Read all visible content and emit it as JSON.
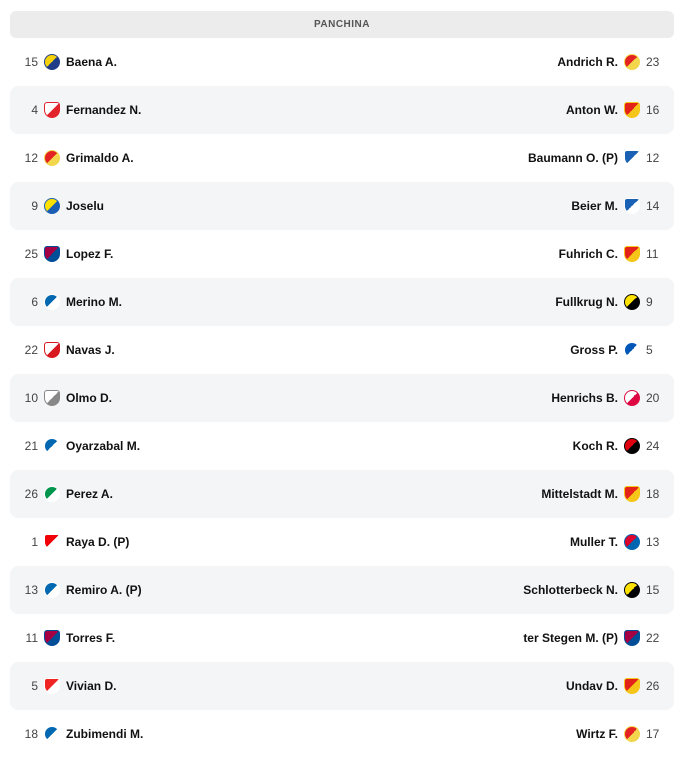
{
  "header": {
    "title": "PANCHINA"
  },
  "rows": [
    {
      "home": {
        "num": "15",
        "name": "Baena A.",
        "crest": "villarreal-crest",
        "c1": "#f5d20c",
        "c2": "#1f3c88"
      },
      "away": {
        "num": "23",
        "name": "Andrich R.",
        "crest": "leverkusen-crest",
        "c1": "#e32221",
        "c2": "#f2d64b"
      }
    },
    {
      "home": {
        "num": "4",
        "name": "Fernandez N.",
        "crest": "girona-crest",
        "c1": "#ffffff",
        "c2": "#e3232c"
      },
      "away": {
        "num": "16",
        "name": "Anton W.",
        "crest": "stuttgart-crest",
        "c1": "#e32219",
        "c2": "#f5c518"
      }
    },
    {
      "home": {
        "num": "12",
        "name": "Grimaldo A.",
        "crest": "leverkusen-crest",
        "c1": "#e32221",
        "c2": "#f2d64b"
      },
      "away": {
        "num": "12",
        "name": "Baumann O. (P)",
        "crest": "hoffenheim-crest",
        "c1": "#1961b5",
        "c2": "#ffffff"
      }
    },
    {
      "home": {
        "num": "9",
        "name": "Joselu",
        "crest": "las-palmas-crest",
        "c1": "#ffe100",
        "c2": "#1a5fb4"
      },
      "away": {
        "num": "14",
        "name": "Beier M.",
        "crest": "hoffenheim-crest",
        "c1": "#1961b5",
        "c2": "#ffffff"
      }
    },
    {
      "home": {
        "num": "25",
        "name": "Lopez F.",
        "crest": "barcelona-crest",
        "c1": "#a50044",
        "c2": "#004d98"
      },
      "away": {
        "num": "11",
        "name": "Fuhrich C.",
        "crest": "stuttgart-crest",
        "c1": "#e32219",
        "c2": "#f5c518"
      }
    },
    {
      "home": {
        "num": "6",
        "name": "Merino M.",
        "crest": "real-sociedad-crest",
        "c1": "#0067b1",
        "c2": "#ffffff"
      },
      "away": {
        "num": "9",
        "name": "Fullkrug N.",
        "crest": "dortmund-crest",
        "c1": "#fde100",
        "c2": "#000000"
      }
    },
    {
      "home": {
        "num": "22",
        "name": "Navas J.",
        "crest": "sevilla-crest",
        "c1": "#ffffff",
        "c2": "#d81920"
      },
      "away": {
        "num": "5",
        "name": "Gross P.",
        "crest": "brighton-crest",
        "c1": "#0057b8",
        "c2": "#ffffff"
      }
    },
    {
      "home": {
        "num": "10",
        "name": "Olmo D.",
        "crest": "generic-crest",
        "c1": "#ffffff",
        "c2": "#888888"
      },
      "away": {
        "num": "20",
        "name": "Henrichs B.",
        "crest": "leipzig-crest",
        "c1": "#ffffff",
        "c2": "#dd0741"
      }
    },
    {
      "home": {
        "num": "21",
        "name": "Oyarzabal M.",
        "crest": "real-sociedad-crest",
        "c1": "#0067b1",
        "c2": "#ffffff"
      },
      "away": {
        "num": "24",
        "name": "Koch R.",
        "crest": "frankfurt-crest",
        "c1": "#e1000f",
        "c2": "#000000"
      }
    },
    {
      "home": {
        "num": "26",
        "name": "Perez A.",
        "crest": "betis-crest",
        "c1": "#00954c",
        "c2": "#ffffff"
      },
      "away": {
        "num": "18",
        "name": "Mittelstadt M.",
        "crest": "stuttgart-crest",
        "c1": "#e32219",
        "c2": "#f5c518"
      }
    },
    {
      "home": {
        "num": "1",
        "name": "Raya D. (P)",
        "crest": "arsenal-crest",
        "c1": "#ef0107",
        "c2": "#ffffff"
      },
      "away": {
        "num": "13",
        "name": "Muller T.",
        "crest": "bayern-crest",
        "c1": "#dc052d",
        "c2": "#0066b2"
      }
    },
    {
      "home": {
        "num": "13",
        "name": "Remiro A. (P)",
        "crest": "real-sociedad-crest",
        "c1": "#0067b1",
        "c2": "#ffffff"
      },
      "away": {
        "num": "15",
        "name": "Schlotterbeck N.",
        "crest": "dortmund-crest",
        "c1": "#fde100",
        "c2": "#000000"
      }
    },
    {
      "home": {
        "num": "11",
        "name": "Torres F.",
        "crest": "barcelona-crest",
        "c1": "#a50044",
        "c2": "#004d98"
      },
      "away": {
        "num": "22",
        "name": "ter Stegen M. (P)",
        "crest": "barcelona-crest",
        "c1": "#a50044",
        "c2": "#004d98"
      }
    },
    {
      "home": {
        "num": "5",
        "name": "Vivian D.",
        "crest": "athletic-crest",
        "c1": "#ee2523",
        "c2": "#ffffff"
      },
      "away": {
        "num": "26",
        "name": "Undav D.",
        "crest": "stuttgart-crest",
        "c1": "#e32219",
        "c2": "#f5c518"
      }
    },
    {
      "home": {
        "num": "18",
        "name": "Zubimendi M.",
        "crest": "real-sociedad-crest",
        "c1": "#0067b1",
        "c2": "#ffffff"
      },
      "away": {
        "num": "17",
        "name": "Wirtz F.",
        "crest": "leverkusen-crest",
        "c1": "#e32221",
        "c2": "#f2d64b"
      }
    }
  ]
}
